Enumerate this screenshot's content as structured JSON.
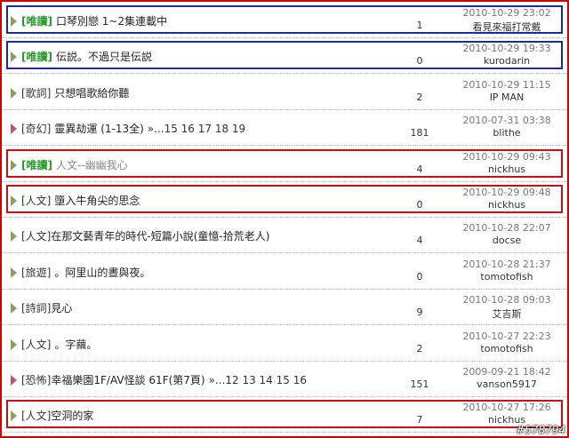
{
  "topics": [
    {
      "tag": "[唯讀]",
      "title": "口琴別戀 1~2集連載中",
      "replies": 1,
      "date": "2010-10-29 23:02",
      "author": "看見來福打常戴"
    },
    {
      "tag": "[唯讀]",
      "title": "伝説。不過只是伝説",
      "replies": 0,
      "date": "2010-10-29 19:33",
      "author": "kurodarin"
    },
    {
      "tag": "[歌詞]",
      "title": "只想唱歌給你聽",
      "replies": 2,
      "date": "2010-10-29 11:15",
      "author": "IP MAN"
    },
    {
      "tag": "[奇幻]",
      "title": "靈異劫運 (1-13全)",
      "pages": "»...15 16 17 18 19",
      "replies": 181,
      "date": "2010-07-31 03:38",
      "author": "blithe"
    },
    {
      "tag": "[唯讀]",
      "title": "人文--幽幽我心",
      "replies": 4,
      "date": "2010-10-29 09:43",
      "author": "nickhus"
    },
    {
      "tag": "[人文]",
      "title": "墮入牛角尖的思念",
      "replies": 0,
      "date": "2010-10-29 09:48",
      "author": "nickhus"
    },
    {
      "tag": "[人文]",
      "title": "在那文藝青年的時代-短篇小說(童憶-拾荒老人)",
      "replies": 4,
      "date": "2010-10-28 22:07",
      "author": "docse"
    },
    {
      "tag": "[旅遊]",
      "title": "。阿里山的晝與夜。",
      "replies": 0,
      "date": "2010-10-28 21:37",
      "author": "tomotofish"
    },
    {
      "tag": "[詩詞]",
      "title": "見心",
      "replies": 9,
      "date": "2010-10-28 09:03",
      "author": "艾吉斯"
    },
    {
      "tag": "[人文]",
      "title": "。字繭。",
      "replies": 2,
      "date": "2010-10-27 22:23",
      "author": "tomotofish"
    },
    {
      "tag": "[恐怖]",
      "title": "幸福樂園1F/AV怪談 61F(第7頁)",
      "pages": "»...12 13 14 15 16",
      "replies": 151,
      "date": "2009-09-21 18:42",
      "author": "vanson5917"
    },
    {
      "tag": "[人文]",
      "title": "空洞的家",
      "replies": 7,
      "date": "2010-10-27 17:26",
      "author": "nickhus"
    }
  ],
  "watermark": "#578794"
}
